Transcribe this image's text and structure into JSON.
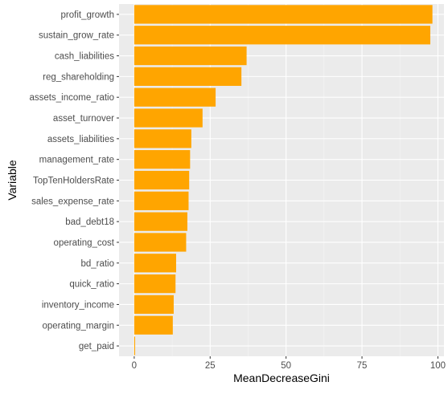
{
  "chart_data": {
    "type": "bar",
    "orientation": "horizontal",
    "xlabel": "MeanDecreaseGini",
    "ylabel": "Variable",
    "xlim": [
      -5,
      102
    ],
    "xticks": [
      0,
      25,
      50,
      75,
      100
    ],
    "grid": true,
    "legend": "none",
    "categories": [
      "profit_growth",
      "sustain_grow_rate",
      "cash_liabilities",
      "reg_shareholding",
      "assets_income_ratio",
      "asset_turnover",
      "assets_liabilities",
      "management_rate",
      "TopTenHoldersRate",
      "sales_expense_rate",
      "bad_debt18",
      "operating_cost",
      "bd_ratio",
      "quick_ratio",
      "inventory_income",
      "operating_margin",
      "get_paid"
    ],
    "values": [
      98.2,
      97.5,
      37.0,
      35.3,
      26.8,
      22.5,
      18.8,
      18.4,
      18.1,
      17.9,
      17.5,
      17.1,
      13.8,
      13.6,
      13.0,
      12.7,
      0.3
    ],
    "colors": {
      "bar": "#FFA500",
      "panel": "#EBEBEB",
      "grid_major": "#FFFFFF",
      "grid_minor": "#F5F5F5"
    }
  }
}
